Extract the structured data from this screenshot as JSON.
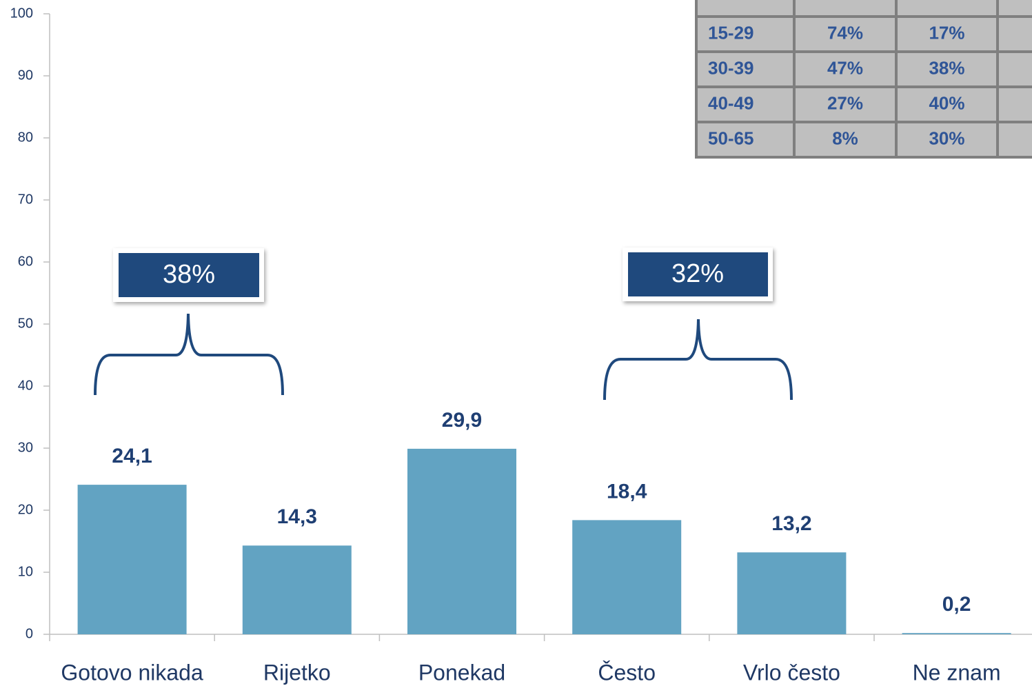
{
  "chart_data": {
    "type": "bar",
    "categories": [
      "Gotovo nikada",
      "Rijetko",
      "Ponekad",
      "Često",
      "Vrlo često",
      "Ne znam"
    ],
    "values": [
      24.1,
      14.3,
      29.9,
      18.4,
      13.2,
      0.2
    ],
    "value_labels": [
      "24,1",
      "14,3",
      "29,9",
      "18,4",
      "13,2",
      "0,2"
    ],
    "color": "#62a3c2",
    "ylim": [
      0,
      100
    ],
    "yticks": [
      0,
      10,
      20,
      30,
      40,
      50,
      60,
      70,
      80,
      90,
      100
    ],
    "grid": false,
    "annotations": [
      "38%",
      "32%"
    ]
  },
  "table": {
    "rows": [
      [
        "15-29",
        "74%",
        "17%"
      ],
      [
        "30-39",
        "47%",
        "38%"
      ],
      [
        "40-49",
        "27%",
        "40%"
      ],
      [
        "50-65",
        "8%",
        "30%"
      ]
    ]
  }
}
